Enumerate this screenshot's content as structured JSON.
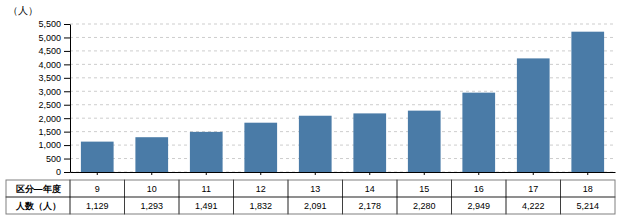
{
  "chart_data": {
    "type": "bar",
    "y_label": "（人）",
    "categories": [
      "9",
      "10",
      "11",
      "12",
      "13",
      "14",
      "15",
      "16",
      "17",
      "18"
    ],
    "values": [
      1129,
      1293,
      1491,
      1832,
      2091,
      2178,
      2280,
      2949,
      4222,
      5214
    ],
    "value_labels": [
      "1,129",
      "1,293",
      "1,491",
      "1,832",
      "2,091",
      "2,178",
      "2,280",
      "2,949",
      "4,222",
      "5,214"
    ],
    "table_labels": [
      "区分―年度",
      "人数（人）"
    ],
    "color": "#4a7ba7",
    "ylim": [
      0,
      5500
    ],
    "yticks": [
      0,
      500,
      {
        "value": 1000,
        "label": "1,000"
      },
      {
        "value": 1500,
        "label": "1,500"
      },
      {
        "value": 2000,
        "label": "2,000"
      },
      {
        "value": 2500,
        "label": "2,500"
      },
      {
        "value": 3000,
        "label": "3,000"
      },
      {
        "value": 3500,
        "label": "3,500"
      },
      {
        "value": 4000,
        "label": "4,000"
      },
      {
        "value": 4500,
        "label": "4,500"
      },
      {
        "value": 5000,
        "label": "5,000"
      },
      {
        "value": 5500,
        "label": "5,500"
      }
    ],
    "grid": true,
    "tick_labels": "y"
  }
}
